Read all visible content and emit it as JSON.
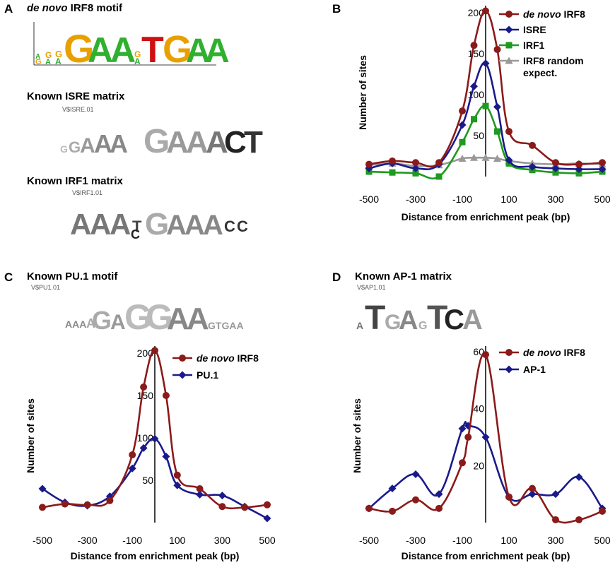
{
  "panels": {
    "A": {
      "letter": "A",
      "title_italic": "de novo",
      "title_rest": " IRF8 motif",
      "isre_title": "Known ISRE matrix",
      "isre_label": "V$ISRE.01",
      "irf1_title": "Known IRF1 matrix",
      "irf1_label": "V$IRF1.01"
    },
    "B": {
      "letter": "B"
    },
    "C": {
      "letter": "C",
      "title": "Known PU.1 motif",
      "logo_label": "V$PU1.01"
    },
    "D": {
      "letter": "D",
      "title": "Known AP-1 matrix",
      "logo_label": "V$AP1.01"
    }
  },
  "colors": {
    "denovo": "#8B1A1A",
    "isre": "#1A1A8B",
    "irf1": "#1E9A1E",
    "random": "#999999",
    "pu1": "#1A1A8B",
    "ap1": "#1A1A8B"
  },
  "chart_data": [
    {
      "id": "B",
      "type": "line",
      "xlabel": "Distance from enrichment peak (bp)",
      "ylabel": "Number of sites",
      "xlim": [
        -500,
        500
      ],
      "ylim": [
        0,
        205
      ],
      "x_ticks": [
        -500,
        -300,
        -100,
        100,
        300,
        500
      ],
      "y_ticks": [
        50,
        100,
        150,
        200
      ],
      "x": [
        -500,
        -400,
        -300,
        -200,
        -100,
        -50,
        0,
        50,
        100,
        200,
        300,
        400,
        500
      ],
      "series": [
        {
          "name_italic": "de novo",
          "name_rest": " IRF8",
          "color_key": "denovo",
          "marker": "circle",
          "values": [
            15,
            19,
            17,
            17,
            80,
            160,
            202,
            155,
            55,
            38,
            17,
            15,
            17
          ]
        },
        {
          "name": "ISRE",
          "color_key": "isre",
          "marker": "diamond",
          "values": [
            10,
            16,
            10,
            15,
            63,
            110,
            138,
            85,
            20,
            12,
            10,
            9,
            9
          ]
        },
        {
          "name": "IRF1",
          "color_key": "irf1",
          "marker": "square",
          "values": [
            6,
            5,
            4,
            0,
            42,
            70,
            86,
            55,
            16,
            8,
            5,
            4,
            6
          ]
        },
        {
          "name": "IRF8 random expect.",
          "name_line1": "IRF8 random",
          "name_line2": "expect.",
          "color_key": "random",
          "marker": "triangle",
          "values": [
            14,
            16,
            13,
            14,
            22,
            23,
            23,
            22,
            19,
            16,
            15,
            16,
            15
          ]
        }
      ],
      "legend": "top-right"
    },
    {
      "id": "C",
      "type": "line",
      "xlabel": "Distance from enrichment peak (bp)",
      "ylabel": "Number of sites",
      "xlim": [
        -500,
        500
      ],
      "ylim": [
        0,
        205
      ],
      "x_ticks": [
        -500,
        -300,
        -100,
        100,
        300,
        500
      ],
      "y_ticks": [
        50,
        100,
        150,
        200
      ],
      "x": [
        -500,
        -400,
        -300,
        -200,
        -100,
        -50,
        0,
        50,
        100,
        200,
        300,
        400,
        500
      ],
      "series": [
        {
          "name_italic": "de novo",
          "name_rest": " IRF8",
          "color_key": "denovo",
          "marker": "circle",
          "values": [
            18,
            22,
            21,
            26,
            80,
            160,
            203,
            150,
            56,
            40,
            19,
            18,
            21
          ]
        },
        {
          "name": "PU.1",
          "color_key": "pu1",
          "marker": "diamond",
          "values": [
            40,
            24,
            20,
            31,
            64,
            88,
            99,
            78,
            44,
            33,
            32,
            19,
            5
          ]
        }
      ],
      "legend": "top-right"
    },
    {
      "id": "D",
      "type": "line",
      "xlabel": "Distance from enrichment peak (bp)",
      "ylabel": "Number of sites",
      "xlim": [
        -500,
        500
      ],
      "ylim": [
        0,
        61
      ],
      "x_ticks": [
        -500,
        -300,
        -100,
        100,
        300,
        500
      ],
      "y_ticks": [
        20,
        40,
        60
      ],
      "x": [
        -500,
        -400,
        -300,
        -200,
        -100,
        -75,
        0,
        100,
        200,
        300,
        400,
        500
      ],
      "series": [
        {
          "name_italic": "de novo",
          "name_rest": " IRF8",
          "color_key": "denovo",
          "marker": "circle",
          "values": [
            5,
            4,
            8,
            5,
            21,
            30,
            59,
            9,
            12,
            1,
            1,
            4
          ]
        },
        {
          "name": "AP-1",
          "color_key": "ap1",
          "marker": "diamond",
          "values": [
            5,
            12,
            17,
            10,
            33,
            34,
            30,
            9,
            10,
            10,
            16,
            5
          ]
        }
      ],
      "legend": "top-right"
    }
  ]
}
